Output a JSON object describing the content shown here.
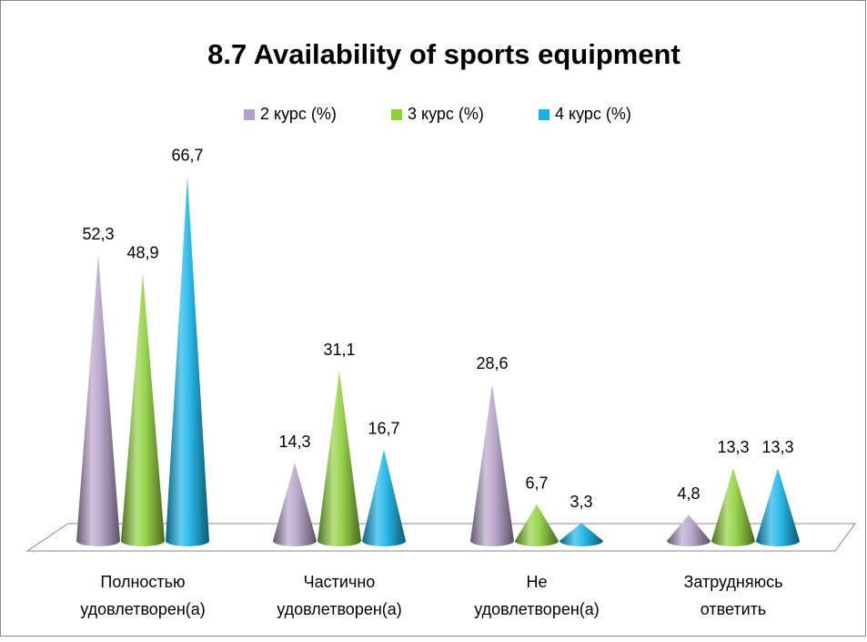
{
  "chart_data": {
    "type": "cone",
    "title": "8.7 Availability of sports equipment",
    "categories": [
      [
        "Полностью",
        "удовлетворен(а)"
      ],
      [
        "Частично",
        "удовлетворен(а)"
      ],
      [
        "Не",
        "удовлетворен(а)"
      ],
      [
        "Затрудняюсь",
        "ответить"
      ]
    ],
    "series": [
      {
        "name": "2 курс (%)",
        "color": "#b3a2c7",
        "values": [
          52.3,
          14.3,
          28.6,
          4.8
        ],
        "value_labels": [
          "52,3",
          "14,3",
          "28,6",
          "4,8"
        ]
      },
      {
        "name": "3 курс (%)",
        "color": "#8fd03a",
        "values": [
          48.9,
          31.1,
          6.7,
          13.3
        ],
        "value_labels": [
          "48,9",
          "31,1",
          "6,7",
          "13,3"
        ]
      },
      {
        "name": "4 курс (%)",
        "color": "#14b2e8",
        "values": [
          66.7,
          16.7,
          3.3,
          13.3
        ],
        "value_labels": [
          "66,7",
          "16,7",
          "3,3",
          "13,3"
        ]
      }
    ],
    "legend": "top"
  }
}
